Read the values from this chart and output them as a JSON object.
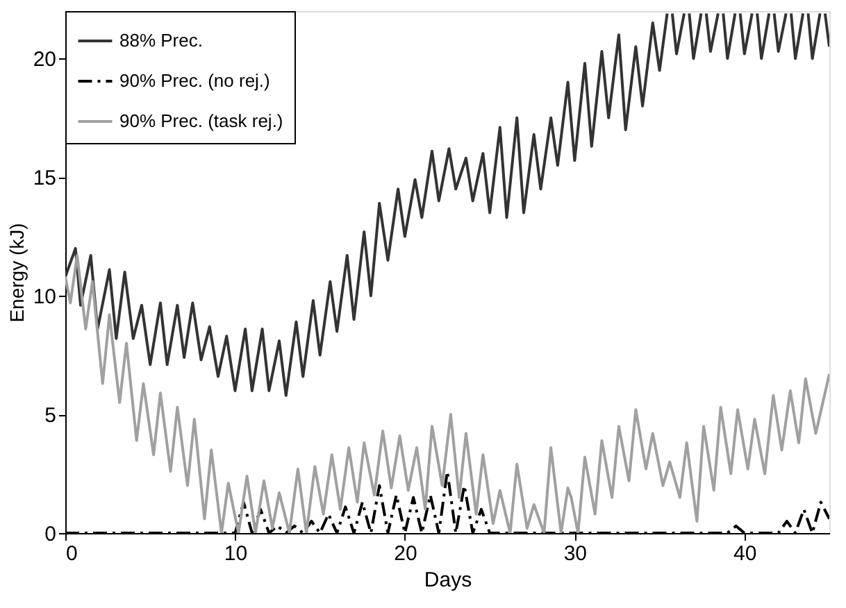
{
  "chart_data": {
    "type": "line",
    "xlabel": "Days",
    "ylabel": "Energy (kJ)",
    "xlim": [
      0,
      45
    ],
    "ylim": [
      0,
      22
    ],
    "xticks": [
      0,
      10,
      20,
      30,
      40
    ],
    "yticks": [
      0,
      5,
      10,
      15,
      20
    ],
    "grid": false,
    "legend": "top left",
    "series": [
      {
        "name": "88% Prec.",
        "color": "#333333",
        "line_style": "solid",
        "x": [
          0,
          0.6,
          0.9,
          1.5,
          1.9,
          2.6,
          3.0,
          3.5,
          4.0,
          4.5,
          5.0,
          5.6,
          6.0,
          6.6,
          7.0,
          7.5,
          8.0,
          8.5,
          9.0,
          9.5,
          10.0,
          10.6,
          11.0,
          11.6,
          12.0,
          12.6,
          13.0,
          13.6,
          14.0,
          14.6,
          15.0,
          15.6,
          16.0,
          16.6,
          17.0,
          17.6,
          18.0,
          18.5,
          19.0,
          19.6,
          20.0,
          20.6,
          21.0,
          21.6,
          22.0,
          22.6,
          23.0,
          23.6,
          24.0,
          24.6,
          25.0,
          25.6,
          26.0,
          26.6,
          27.0,
          27.6,
          28.0,
          28.6,
          29.0,
          29.6,
          30.0,
          30.6,
          31.0,
          31.6,
          32.0,
          32.6,
          33.0,
          33.6,
          34.0,
          34.6,
          35.0,
          35.45,
          35.6,
          35.75,
          36.0,
          36.45,
          36.6,
          36.75,
          37.0,
          37.45,
          37.6,
          37.75,
          38.0,
          38.45,
          38.6,
          38.75,
          39.0,
          39.45,
          39.6,
          39.75,
          40.0,
          40.45,
          40.6,
          40.75,
          41.0,
          41.45,
          41.6,
          41.75,
          42.0,
          42.45,
          42.6,
          42.75,
          43.0,
          43.45,
          43.6,
          43.75,
          44.0,
          44.45,
          44.6,
          44.75,
          45
        ],
        "values": [
          10.8,
          12.0,
          9.6,
          11.7,
          8.6,
          11.1,
          8.2,
          11.0,
          8.2,
          9.6,
          7.1,
          9.7,
          7.1,
          9.6,
          7.4,
          9.7,
          7.3,
          8.7,
          6.6,
          8.3,
          6.0,
          8.6,
          6.0,
          8.6,
          6.0,
          8.1,
          5.8,
          8.9,
          6.6,
          9.8,
          7.5,
          10.6,
          8.5,
          11.7,
          9.0,
          12.7,
          10.0,
          13.9,
          11.5,
          14.5,
          12.5,
          14.9,
          13.3,
          16.1,
          14.0,
          16.2,
          14.5,
          15.8,
          14.0,
          16.0,
          13.5,
          17.1,
          13.3,
          17.5,
          13.5,
          16.8,
          14.5,
          17.5,
          15.5,
          19.0,
          15.7,
          19.8,
          16.3,
          20.3,
          17.5,
          21.0,
          17.0,
          20.5,
          18.0,
          21.5,
          19.5,
          21.9,
          null,
          21.9,
          20.2,
          21.9,
          null,
          21.9,
          20.0,
          21.9,
          null,
          21.9,
          20.3,
          21.9,
          null,
          21.9,
          20.0,
          21.9,
          null,
          21.9,
          20.2,
          21.9,
          null,
          21.9,
          20.0,
          21.9,
          null,
          21.9,
          20.3,
          21.9,
          null,
          21.9,
          20.0,
          21.9,
          null,
          21.9,
          20.0,
          21.9,
          null,
          21.9,
          20.5
        ]
      },
      {
        "name": "90% Prec. (no rej.)",
        "color": "#000000",
        "line_style": "dashdot",
        "x": [
          0,
          10.0,
          10.5,
          11.0,
          11.5,
          12.0,
          12.5,
          13.0,
          13.5,
          14.0,
          14.5,
          15.0,
          15.5,
          16.0,
          16.5,
          17.0,
          17.5,
          18.0,
          18.5,
          19.0,
          19.5,
          20.0,
          20.5,
          21.0,
          21.5,
          22.0,
          22.5,
          23.0,
          23.5,
          24.0,
          24.5,
          25.0,
          39.0,
          39.5,
          40.0,
          42.0,
          42.5,
          43.0,
          43.5,
          44.0,
          44.5,
          45
        ],
        "values": [
          0,
          0,
          1.3,
          0,
          1.0,
          0,
          0.3,
          0,
          0.3,
          0,
          0.5,
          0,
          0.8,
          0,
          1.1,
          0,
          1.3,
          0,
          2.0,
          0,
          1.6,
          0,
          1.5,
          0,
          1.6,
          0,
          2.6,
          0,
          2.0,
          0,
          1.0,
          0,
          0,
          0.3,
          0,
          0,
          0.5,
          0,
          1.0,
          0,
          1.3,
          0.6
        ]
      },
      {
        "name": "90% Prec. (task rej.)",
        "color": "#a0a0a0",
        "line_style": "solid",
        "x": [
          0,
          0.3,
          0.7,
          1.2,
          1.6,
          2.2,
          2.6,
          3.2,
          3.6,
          4.2,
          4.6,
          5.2,
          5.6,
          6.2,
          6.6,
          7.2,
          7.6,
          8.2,
          8.6,
          9.2,
          9.6,
          10.2,
          10.7,
          11.2,
          11.7,
          12.2,
          12.6,
          13.2,
          13.7,
          14.2,
          14.7,
          15.2,
          15.7,
          16.2,
          16.7,
          17.2,
          17.6,
          18.2,
          18.7,
          19.2,
          19.7,
          20.2,
          20.7,
          21.2,
          21.6,
          22.2,
          22.7,
          23.2,
          23.6,
          24.2,
          24.6,
          25.2,
          25.6,
          26.2,
          26.6,
          27.2,
          27.6,
          28.2,
          28.6,
          29.2,
          29.6,
          29.8,
          30.2,
          30.6,
          31.2,
          31.6,
          32.2,
          32.6,
          33.2,
          33.6,
          34.2,
          34.6,
          35.2,
          35.6,
          36.2,
          36.6,
          37.2,
          37.6,
          38.2,
          38.6,
          39.2,
          39.6,
          40.2,
          40.6,
          41.2,
          41.7,
          42.2,
          42.7,
          43.2,
          43.6,
          44.2,
          45
        ],
        "values": [
          10.8,
          9.7,
          11.7,
          8.6,
          10.6,
          6.3,
          9.2,
          5.5,
          8.0,
          3.9,
          6.3,
          3.3,
          5.9,
          2.6,
          5.3,
          2.0,
          4.8,
          0.6,
          3.5,
          0,
          2.1,
          0,
          2.4,
          0,
          2.2,
          0.2,
          1.7,
          0,
          2.7,
          0,
          2.8,
          0.8,
          3.3,
          1.0,
          3.6,
          1.3,
          3.8,
          1.6,
          4.3,
          1.9,
          4.1,
          1.8,
          3.6,
          1.0,
          4.5,
          2.0,
          5.0,
          1.5,
          4.2,
          0.8,
          3.3,
          0.4,
          1.8,
          0,
          2.9,
          0.2,
          1.2,
          0,
          3.6,
          0,
          1.9,
          1.5,
          0,
          3.2,
          0.8,
          3.9,
          1.5,
          4.5,
          2.2,
          5.2,
          2.7,
          4.2,
          2.0,
          3.0,
          1.5,
          3.8,
          0.5,
          4.5,
          1.8,
          5.3,
          2.5,
          5.2,
          2.7,
          4.8,
          2.5,
          5.8,
          3.5,
          6.0,
          3.8,
          6.5,
          4.2,
          6.7
        ]
      }
    ]
  }
}
